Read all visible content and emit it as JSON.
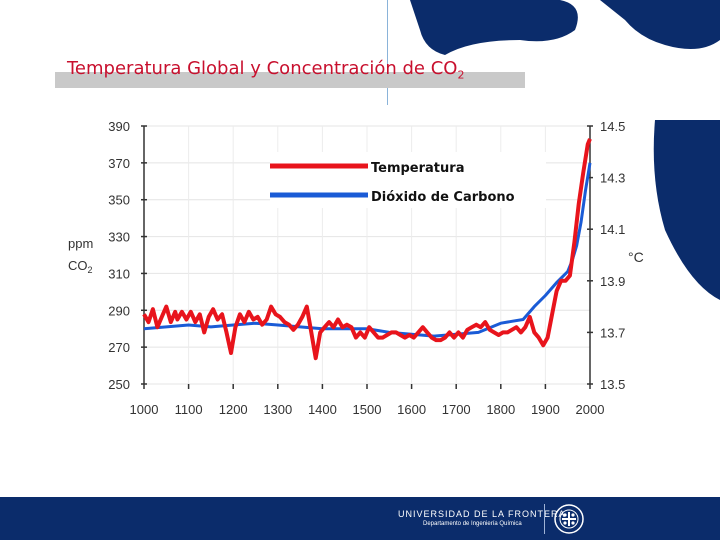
{
  "slide": {
    "title": "Temperatura Global y Concentración de CO",
    "title_sub": "2"
  },
  "footer": {
    "university": "UNIVERSIDAD DE LA FRONTERA",
    "department": "Departamento de Ingeniería Química"
  },
  "colors": {
    "temperature": "#e8141c",
    "co2": "#1a5bd6",
    "brand_blue": "#0b2c6b",
    "title_red": "#c8102e"
  },
  "chart_data": {
    "type": "line",
    "title": "Temperatura Global y Concentración de CO2",
    "x_ticks": [
      "1000",
      "1100",
      "1200",
      "1300",
      "1400",
      "1500",
      "1600",
      "1700",
      "1800",
      "1900",
      "2000"
    ],
    "xlim": [
      1000,
      2000
    ],
    "left_axis": {
      "label_top": "ppm",
      "label_bottom": "CO",
      "label_sub": "2",
      "ticks": [
        "390",
        "370",
        "350",
        "330",
        "310",
        "290",
        "270",
        "250"
      ],
      "ylim": [
        250,
        390
      ]
    },
    "right_axis": {
      "label": "°C",
      "ticks": [
        "14.5",
        "14.3",
        "14.1",
        "13.9",
        "13.7",
        "13.5"
      ],
      "ylim": [
        13.5,
        14.5
      ]
    },
    "legend": {
      "position": "top-center",
      "temperature": "Temperatura",
      "co2": "Dióxido de Carbono"
    },
    "series": [
      {
        "name": "Temperatura",
        "axis": "right",
        "x": [
          1000,
          1010,
          1020,
          1030,
          1040,
          1050,
          1060,
          1070,
          1075,
          1085,
          1095,
          1105,
          1115,
          1125,
          1135,
          1145,
          1155,
          1165,
          1175,
          1185,
          1195,
          1205,
          1215,
          1225,
          1235,
          1245,
          1255,
          1265,
          1275,
          1285,
          1295,
          1305,
          1315,
          1325,
          1335,
          1345,
          1355,
          1365,
          1375,
          1385,
          1395,
          1405,
          1415,
          1425,
          1435,
          1445,
          1455,
          1465,
          1475,
          1485,
          1495,
          1505,
          1515,
          1525,
          1535,
          1545,
          1555,
          1565,
          1575,
          1585,
          1595,
          1605,
          1615,
          1625,
          1635,
          1645,
          1655,
          1665,
          1675,
          1685,
          1695,
          1705,
          1715,
          1725,
          1735,
          1745,
          1755,
          1765,
          1775,
          1785,
          1795,
          1805,
          1815,
          1825,
          1835,
          1845,
          1855,
          1865,
          1875,
          1885,
          1895,
          1905,
          1915,
          1925,
          1935,
          1945,
          1955,
          1965,
          1975,
          1985,
          1995,
          2000
        ],
        "values": [
          13.77,
          13.74,
          13.79,
          13.72,
          13.76,
          13.8,
          13.74,
          13.78,
          13.75,
          13.78,
          13.75,
          13.78,
          13.74,
          13.77,
          13.7,
          13.76,
          13.79,
          13.75,
          13.77,
          13.7,
          13.62,
          13.72,
          13.77,
          13.74,
          13.78,
          13.75,
          13.76,
          13.73,
          13.75,
          13.8,
          13.77,
          13.76,
          13.74,
          13.73,
          13.71,
          13.73,
          13.76,
          13.8,
          13.7,
          13.6,
          13.7,
          13.72,
          13.74,
          13.72,
          13.75,
          13.72,
          13.73,
          13.72,
          13.68,
          13.7,
          13.68,
          13.72,
          13.7,
          13.68,
          13.68,
          13.69,
          13.7,
          13.7,
          13.69,
          13.68,
          13.69,
          13.68,
          13.7,
          13.72,
          13.7,
          13.68,
          13.67,
          13.67,
          13.68,
          13.7,
          13.68,
          13.7,
          13.68,
          13.71,
          13.72,
          13.73,
          13.72,
          13.74,
          13.71,
          13.7,
          13.69,
          13.7,
          13.7,
          13.71,
          13.72,
          13.7,
          13.72,
          13.76,
          13.7,
          13.68,
          13.65,
          13.68,
          13.77,
          13.86,
          13.9,
          13.9,
          13.92,
          14.05,
          14.2,
          14.32,
          14.43,
          14.45
        ]
      },
      {
        "name": "Dióxido de Carbono",
        "axis": "left",
        "x": [
          1000,
          1050,
          1100,
          1150,
          1200,
          1250,
          1300,
          1350,
          1400,
          1450,
          1500,
          1550,
          1600,
          1650,
          1700,
          1750,
          1800,
          1825,
          1850,
          1875,
          1900,
          1925,
          1950,
          1960,
          1970,
          1980,
          1990,
          2000
        ],
        "values": [
          280,
          281,
          282,
          281,
          282,
          283,
          282,
          281,
          280,
          280,
          280,
          278,
          277,
          276,
          277,
          278,
          283,
          284,
          285,
          292,
          298,
          305,
          311,
          317,
          325,
          338,
          355,
          370
        ]
      }
    ]
  }
}
